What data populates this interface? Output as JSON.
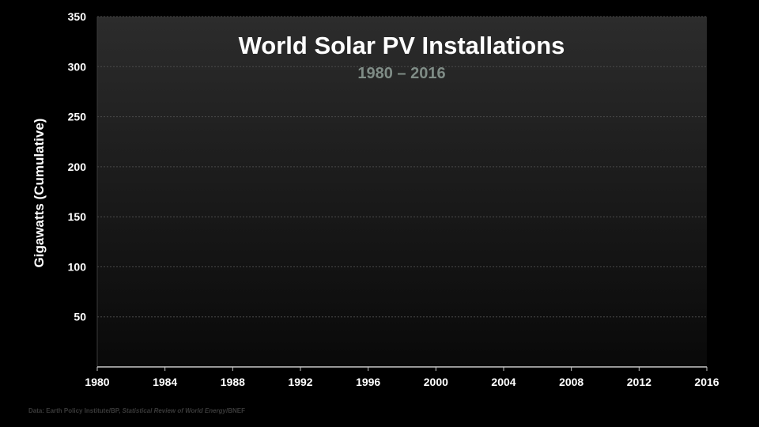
{
  "colors": {
    "background": "#000000",
    "plot_top": "#2c2c2c",
    "plot_bottom": "#090909",
    "title": "#ffffff",
    "subtitle": "#7f8c86",
    "axis_text": "#ffffff",
    "grid": "#4a4a4a",
    "source": "#3a3a3a"
  },
  "chart_data": {
    "type": "line",
    "title": "World Solar PV Installations",
    "subtitle": "1980 – 2016",
    "xlabel": "",
    "ylabel": "Gigawatts (Cumulative)",
    "xlim": [
      1980,
      2016
    ],
    "ylim": [
      0,
      350
    ],
    "x_ticks": [
      1980,
      1984,
      1988,
      1992,
      1996,
      2000,
      2004,
      2008,
      2012,
      2016
    ],
    "y_ticks": [
      50,
      100,
      150,
      200,
      250,
      300,
      350
    ],
    "grid": true,
    "series": []
  },
  "source": {
    "prefix": "Data: Earth Policy Institute/BP, ",
    "italic": "Statistical Review of World Energy",
    "suffix": "/BNEF"
  }
}
